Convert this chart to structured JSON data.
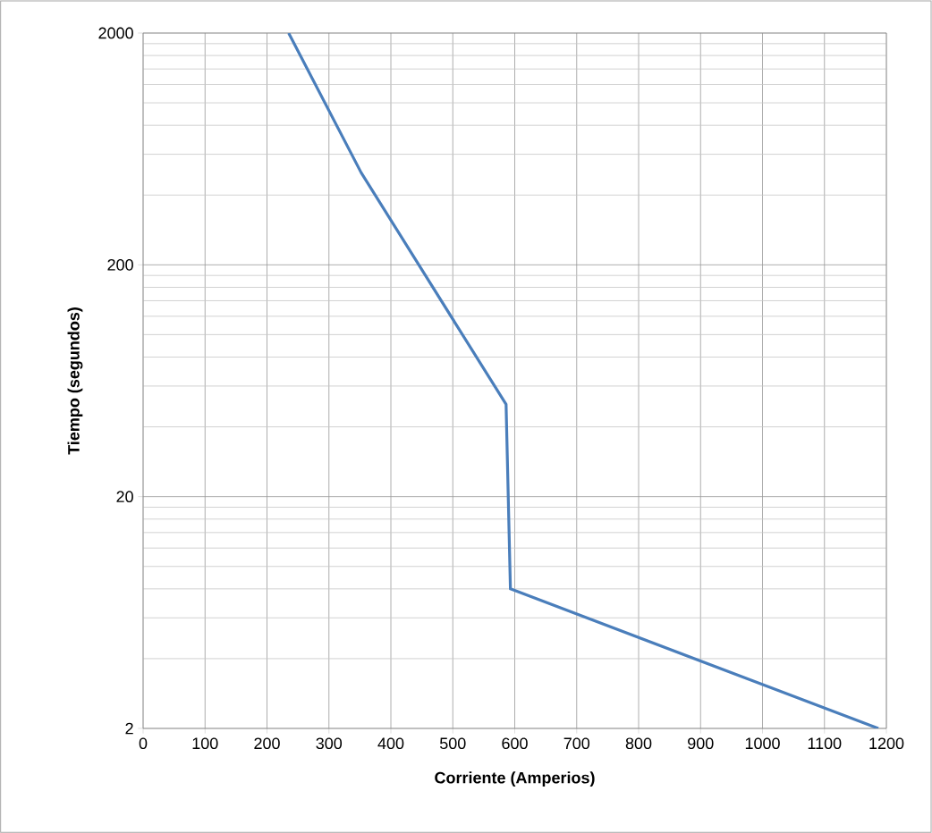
{
  "chart_data": {
    "type": "line",
    "xlabel": "Corriente (Amperios)",
    "ylabel": "Tiempo (segundos)",
    "x": [
      235,
      352,
      586,
      593,
      1187
    ],
    "series": [
      {
        "color": "#4a7ebb",
        "values": [
          2000,
          500,
          50,
          8,
          2
        ]
      }
    ],
    "xlim": [
      0,
      1200
    ],
    "xticks": [
      0,
      100,
      200,
      300,
      400,
      500,
      600,
      700,
      800,
      900,
      1000,
      1100,
      1200
    ],
    "ylim": [
      2,
      2000
    ],
    "yticks": [
      2,
      20,
      200,
      2000
    ],
    "log": "y",
    "grid": true,
    "marker": "none",
    "line_style": "solid"
  }
}
